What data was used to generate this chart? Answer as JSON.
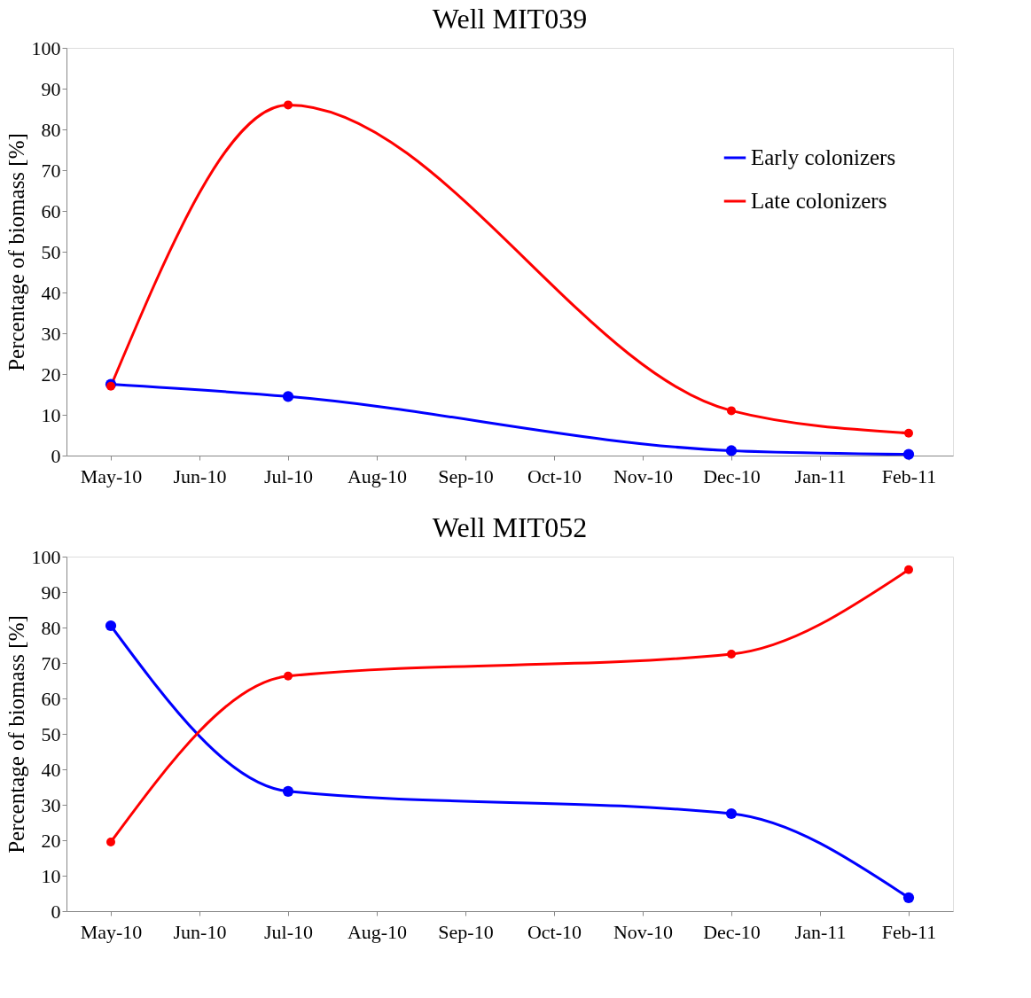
{
  "chart_data": [
    {
      "type": "line",
      "title": "Well MIT039",
      "ylabel": "Percentage of biomass [%]",
      "categories": [
        "May-10",
        "Jun-10",
        "Jul-10",
        "Aug-10",
        "Sep-10",
        "Oct-10",
        "Nov-10",
        "Dec-10",
        "Jan-11",
        "Feb-11"
      ],
      "series": [
        {
          "name": "Early colonizers",
          "color": "#0000ff",
          "values": [
            17.5,
            null,
            14.5,
            null,
            null,
            null,
            null,
            1.2,
            null,
            0.3
          ]
        },
        {
          "name": "Late colonizers",
          "color": "#ff0000",
          "values": [
            17,
            null,
            86,
            null,
            null,
            null,
            null,
            11,
            null,
            5.5
          ]
        }
      ],
      "ylim": [
        0,
        100
      ],
      "yticks": [
        0,
        10,
        20,
        30,
        40,
        50,
        60,
        70,
        80,
        90,
        100
      ],
      "grid": false,
      "legend": "top right",
      "marker": "circle",
      "line_style": "solid"
    },
    {
      "type": "line",
      "title": "Well MIT052",
      "ylabel": "Percentage of biomass [%]",
      "categories": [
        "May-10",
        "Jun-10",
        "Jul-10",
        "Aug-10",
        "Sep-10",
        "Oct-10",
        "Nov-10",
        "Dec-10",
        "Jan-11",
        "Feb-11"
      ],
      "series": [
        {
          "name": "Early colonizers",
          "color": "#0000ff",
          "values": [
            80.5,
            null,
            33.8,
            null,
            null,
            null,
            null,
            27.5,
            null,
            3.8
          ]
        },
        {
          "name": "Late colonizers",
          "color": "#ff0000",
          "values": [
            19.5,
            null,
            66.3,
            null,
            null,
            null,
            null,
            72.5,
            null,
            96.3
          ]
        }
      ],
      "ylim": [
        0,
        100
      ],
      "yticks": [
        0,
        10,
        20,
        30,
        40,
        50,
        60,
        70,
        80,
        90,
        100
      ],
      "grid": false,
      "legend": "right",
      "marker": "circle",
      "line_style": "solid"
    }
  ]
}
